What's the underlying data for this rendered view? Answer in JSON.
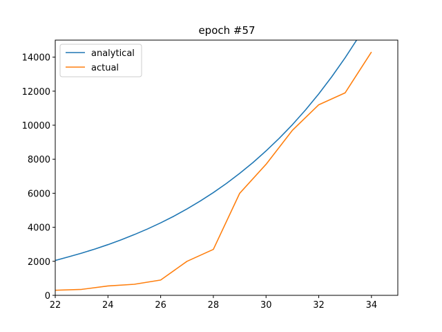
{
  "chart_data": {
    "type": "line",
    "title": "epoch #57",
    "xlabel": "",
    "ylabel": "",
    "xlim": [
      22,
      35
    ],
    "ylim": [
      0,
      15000
    ],
    "x_ticks": [
      22,
      24,
      26,
      28,
      30,
      32,
      34
    ],
    "y_ticks": [
      0,
      2000,
      4000,
      6000,
      8000,
      10000,
      12000,
      14000
    ],
    "grid": false,
    "legend_position": "top-left",
    "series": [
      {
        "name": "analytical",
        "color": "#1f77b4",
        "x": [
          22,
          22.5,
          23,
          23.5,
          24,
          24.5,
          25,
          25.5,
          26,
          26.5,
          27,
          27.5,
          28,
          28.5,
          29,
          29.5,
          30,
          30.5,
          31,
          31.5,
          32,
          32.5,
          33,
          33.5
        ],
        "y": [
          2050,
          2260,
          2480,
          2720,
          2980,
          3260,
          3570,
          3900,
          4260,
          4650,
          5080,
          5540,
          6040,
          6580,
          7170,
          7800,
          8490,
          9230,
          10030,
          10900,
          11840,
          12860,
          13960,
          15150
        ]
      },
      {
        "name": "actual",
        "color": "#ff7f0e",
        "x": [
          22,
          23,
          24,
          25,
          26,
          27,
          28,
          29,
          30,
          31,
          32,
          33,
          34
        ],
        "y": [
          300,
          350,
          550,
          650,
          900,
          2000,
          2700,
          6000,
          7700,
          9700,
          11200,
          11900,
          14300
        ]
      }
    ]
  }
}
